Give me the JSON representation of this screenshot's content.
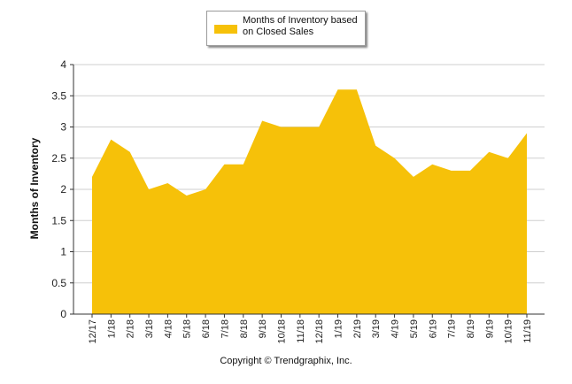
{
  "chart_data": {
    "type": "area",
    "title": "",
    "xlabel": "",
    "ylabel": "Months of Inventory",
    "ylim": [
      0,
      4
    ],
    "yticks": [
      "0",
      "0.5",
      "1",
      "1.5",
      "2",
      "2.5",
      "3",
      "3.5",
      "4"
    ],
    "grid": true,
    "legend_position": "top-center",
    "categories": [
      "12/17",
      "1/18",
      "2/18",
      "3/18",
      "4/18",
      "5/18",
      "6/18",
      "7/18",
      "8/18",
      "9/18",
      "10/18",
      "11/18",
      "12/18",
      "1/19",
      "2/19",
      "3/19",
      "4/19",
      "5/19",
      "6/19",
      "7/19",
      "8/19",
      "9/19",
      "10/19",
      "11/19"
    ],
    "series": [
      {
        "name": "Months of Inventory based on Closed Sales",
        "color": "#f6c109",
        "values": [
          2.2,
          2.8,
          2.6,
          2.0,
          2.1,
          1.9,
          2.0,
          2.4,
          2.4,
          3.1,
          3.0,
          3.0,
          3.0,
          3.6,
          3.6,
          2.7,
          2.5,
          2.2,
          2.4,
          2.3,
          2.3,
          2.6,
          2.5,
          2.9
        ]
      }
    ]
  },
  "legend": {
    "line1": "Months of Inventory based",
    "line2": "on Closed Sales"
  },
  "footer": {
    "copyright": "Copyright © Trendgraphix, Inc."
  }
}
